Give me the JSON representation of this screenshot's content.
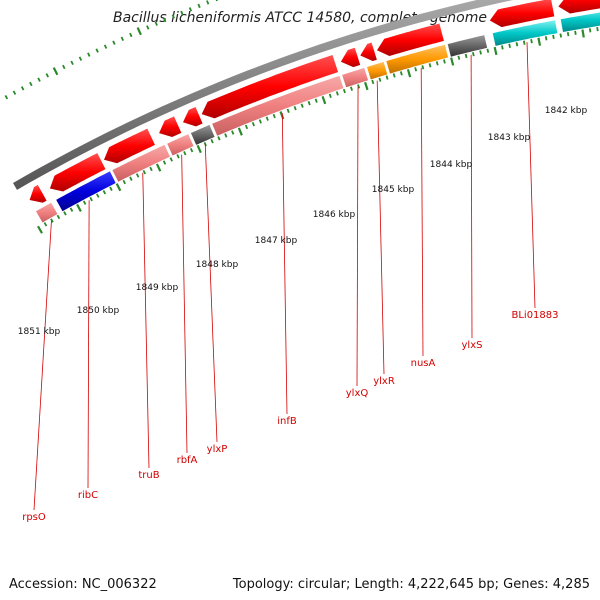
{
  "title": "Bacillus licheniformis ATCC 14580, complete genome",
  "footer": {
    "accession": "Accession: NC_006322",
    "topology": "Topology: circular; Length: 4,222,645 bp; Genes: 4,285"
  },
  "kbp_labels": [
    "1842 kbp",
    "1843 kbp",
    "1844 kbp",
    "1845 kbp",
    "1846 kbp",
    "1847 kbp",
    "1848 kbp",
    "1849 kbp",
    "1850 kbp",
    "1851 kbp"
  ],
  "gene_labels": [
    "rpsO",
    "ribC",
    "truB",
    "rbfA",
    "ylxP",
    "infB",
    "ylxQ",
    "ylxR",
    "nusA",
    "ylxS",
    "BLi01883"
  ],
  "colors": {
    "forward_gene": "#ff0000",
    "light_gene": "#f08080",
    "ribC": "#0000dd",
    "nusA": "#ff9900",
    "grey_gene": "#666666",
    "BLi01883": "#00c8c8",
    "backbone": "#888888",
    "ticks": "#2a8a2a",
    "labels": "#d40000"
  }
}
